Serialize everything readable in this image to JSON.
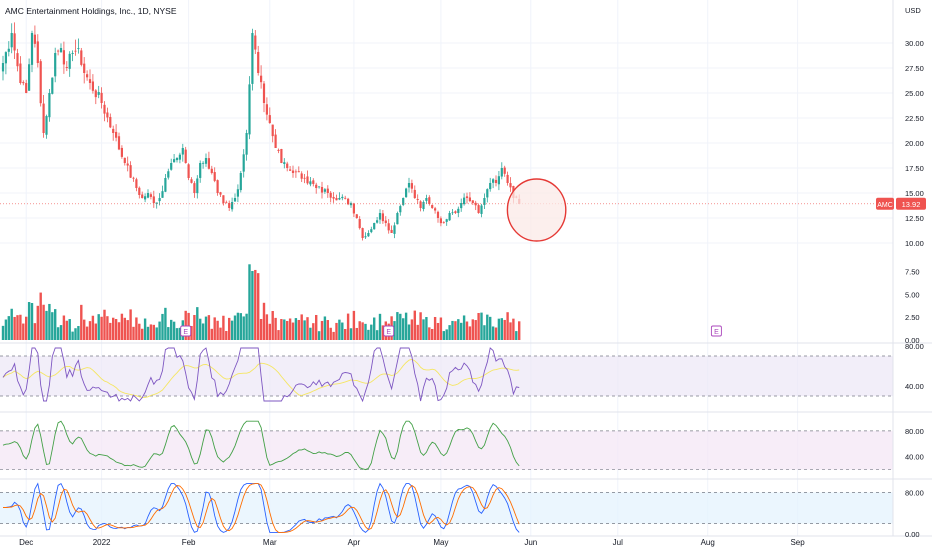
{
  "header": {
    "symbol_title": "AMC Entertainment Holdings, Inc., 1D, NYSE"
  },
  "currency": "USD",
  "price_tag": {
    "symbol": "AMC",
    "value": "13.92"
  },
  "colors": {
    "up": "#26a69a",
    "down": "#ef5350",
    "grid": "#f0f3fa",
    "axis_text": "#131722",
    "rsi_line": "#7e57c2",
    "rsi_ma": "#f5e663",
    "rsi_band": "#ede7f6",
    "osc2_line": "#43a047",
    "osc2_band": "#f3e5f5",
    "stoch_k": "#2962ff",
    "stoch_d": "#ff6d00",
    "stoch_band": "#e3f2fd",
    "highlight_ellipse": "#e53935",
    "highlight_fill": "#fbe9e7"
  },
  "chart_data": [
    {
      "type": "candlestick",
      "panel": "price",
      "y_axis_ticks": [
        10,
        12.5,
        15,
        17.5,
        20,
        22.5,
        25,
        27.5,
        30
      ],
      "y_axis_tick_labels": [
        "10.00",
        "12.50",
        "15.00",
        "17.50",
        "20.00",
        "22.50",
        "25.00",
        "27.50",
        "30.00"
      ],
      "ylim": [
        8.5,
        33.5
      ],
      "x_axis_labels": [
        "Dec",
        "2022",
        "Feb",
        "Mar",
        "Apr",
        "May",
        "Jun",
        "Jul",
        "Aug",
        "Sep"
      ],
      "x_axis_label_index": [
        8,
        34,
        64,
        92,
        121,
        151,
        182,
        212,
        243,
        274
      ],
      "last_price": 13.92,
      "annotation": {
        "type": "ellipse",
        "x_index_range": [
          176,
          192
        ],
        "y_range": [
          10.2,
          16.4
        ]
      },
      "key_points": [
        {
          "i": 0,
          "close": 28
        },
        {
          "i": 3,
          "close": 31
        },
        {
          "i": 6,
          "close": 26
        },
        {
          "i": 8,
          "close": 25
        },
        {
          "i": 10,
          "close": 31
        },
        {
          "i": 12,
          "close": 28
        },
        {
          "i": 14,
          "close": 21
        },
        {
          "i": 16,
          "close": 25
        },
        {
          "i": 18,
          "close": 29
        },
        {
          "i": 20,
          "close": 29.5
        },
        {
          "i": 22,
          "close": 27.5
        },
        {
          "i": 24,
          "close": 29
        },
        {
          "i": 26,
          "close": 29.5
        },
        {
          "i": 28,
          "close": 27
        },
        {
          "i": 30,
          "close": 26
        },
        {
          "i": 34,
          "close": 24
        },
        {
          "i": 38,
          "close": 21
        },
        {
          "i": 42,
          "close": 18
        },
        {
          "i": 46,
          "close": 15.5
        },
        {
          "i": 48,
          "close": 14.5
        },
        {
          "i": 50,
          "close": 15
        },
        {
          "i": 52,
          "close": 14
        },
        {
          "i": 54,
          "close": 14.5
        },
        {
          "i": 56,
          "close": 16.5
        },
        {
          "i": 58,
          "close": 18
        },
        {
          "i": 60,
          "close": 18.5
        },
        {
          "i": 62,
          "close": 19.5
        },
        {
          "i": 64,
          "close": 16.5
        },
        {
          "i": 66,
          "close": 15
        },
        {
          "i": 68,
          "close": 18
        },
        {
          "i": 70,
          "close": 18.5
        },
        {
          "i": 72,
          "close": 17
        },
        {
          "i": 74,
          "close": 15
        },
        {
          "i": 76,
          "close": 14
        },
        {
          "i": 78,
          "close": 13.5
        },
        {
          "i": 80,
          "close": 14.5
        },
        {
          "i": 82,
          "close": 17
        },
        {
          "i": 84,
          "close": 21
        },
        {
          "i": 86,
          "close": 31
        },
        {
          "i": 88,
          "close": 27
        },
        {
          "i": 90,
          "close": 24
        },
        {
          "i": 92,
          "close": 22
        },
        {
          "i": 94,
          "close": 19.5
        },
        {
          "i": 96,
          "close": 18
        },
        {
          "i": 98,
          "close": 17.5
        },
        {
          "i": 100,
          "close": 17
        },
        {
          "i": 104,
          "close": 16.5
        },
        {
          "i": 108,
          "close": 15.5
        },
        {
          "i": 112,
          "close": 15
        },
        {
          "i": 116,
          "close": 14.5
        },
        {
          "i": 120,
          "close": 14
        },
        {
          "i": 122,
          "close": 12.5
        },
        {
          "i": 124,
          "close": 10.5
        },
        {
          "i": 126,
          "close": 11
        },
        {
          "i": 128,
          "close": 12
        },
        {
          "i": 130,
          "close": 13
        },
        {
          "i": 132,
          "close": 12
        },
        {
          "i": 134,
          "close": 11
        },
        {
          "i": 136,
          "close": 13
        },
        {
          "i": 138,
          "close": 14.5
        },
        {
          "i": 140,
          "close": 16
        },
        {
          "i": 142,
          "close": 14.5
        },
        {
          "i": 144,
          "close": 13.5
        },
        {
          "i": 146,
          "close": 14.5
        },
        {
          "i": 148,
          "close": 13.5
        },
        {
          "i": 150,
          "close": 12.5
        },
        {
          "i": 152,
          "close": 12
        },
        {
          "i": 154,
          "close": 13
        },
        {
          "i": 156,
          "close": 13
        },
        {
          "i": 158,
          "close": 14
        },
        {
          "i": 160,
          "close": 14.5
        },
        {
          "i": 162,
          "close": 14
        },
        {
          "i": 164,
          "close": 13
        },
        {
          "i": 166,
          "close": 14.5
        },
        {
          "i": 168,
          "close": 16
        },
        {
          "i": 170,
          "close": 16
        },
        {
          "i": 172,
          "close": 17.5
        },
        {
          "i": 174,
          "close": 16
        },
        {
          "i": 176,
          "close": 14.5
        },
        {
          "i": 178,
          "close": 13.9
        }
      ]
    },
    {
      "type": "bar",
      "panel": "volume",
      "y_axis_ticks": [
        0,
        2.5,
        5,
        7.5
      ],
      "y_axis_tick_labels": [
        "0.00",
        "2.50",
        "5.00",
        "7.50"
      ],
      "ylim": [
        0,
        9
      ]
    },
    {
      "type": "line",
      "panel": "oscillator-1",
      "y_axis_ticks": [
        40,
        80
      ],
      "y_axis_tick_labels": [
        "40.00",
        "80.00"
      ],
      "band": [
        30,
        70
      ],
      "ylim": [
        20,
        80
      ]
    },
    {
      "type": "line",
      "panel": "oscillator-2",
      "y_axis_ticks": [
        40,
        80
      ],
      "y_axis_tick_labels": [
        "40.00",
        "80.00"
      ],
      "band": [
        20,
        80
      ],
      "ylim": [
        10,
        100
      ]
    },
    {
      "type": "line",
      "panel": "stochastic",
      "y_axis_ticks": [
        0,
        80
      ],
      "y_axis_tick_labels": [
        "0.00",
        "80.00"
      ],
      "band": [
        20,
        80
      ],
      "ylim": [
        0,
        100
      ]
    }
  ],
  "earnings_markers": [
    {
      "label": "E",
      "i": 63
    },
    {
      "label": "E",
      "i": 133
    },
    {
      "label": "E",
      "i": 246
    }
  ]
}
